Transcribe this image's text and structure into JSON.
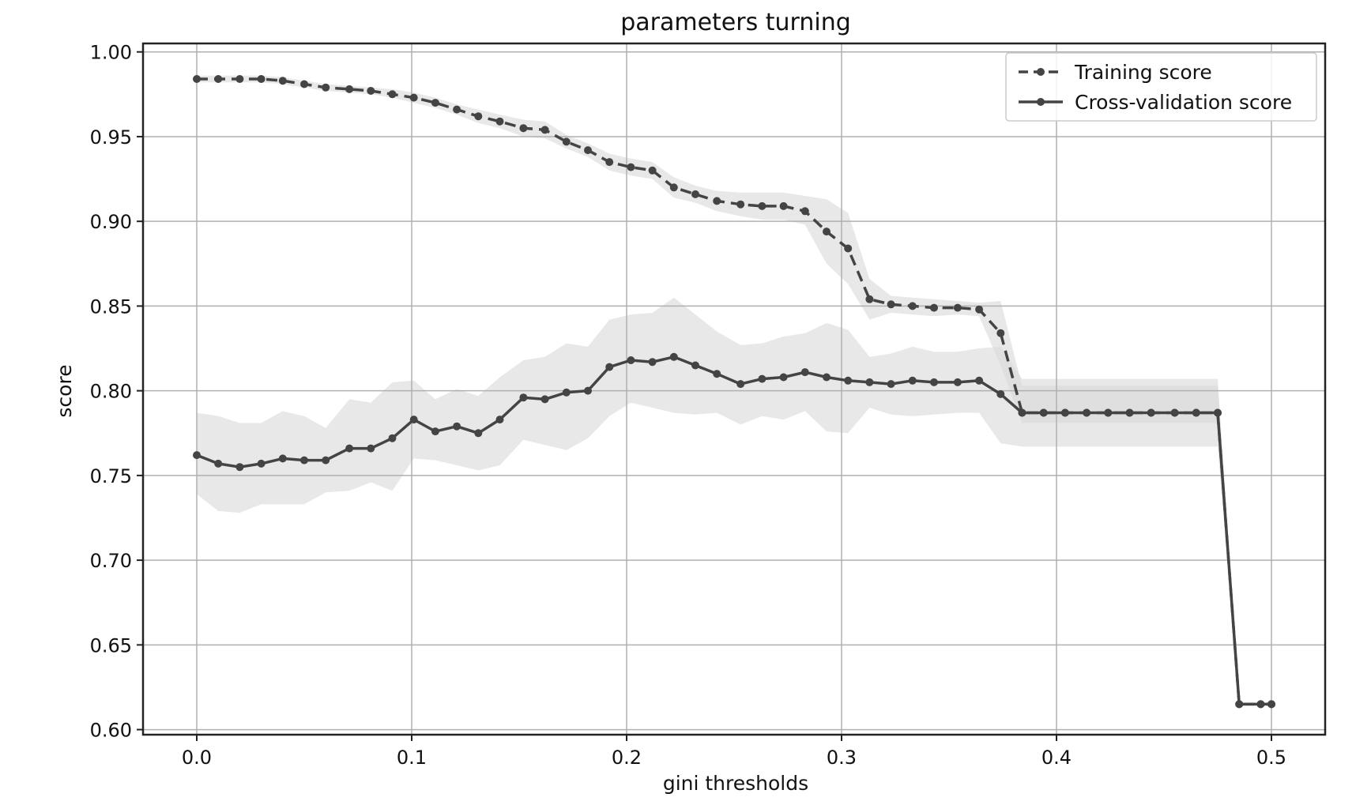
{
  "chart_data": {
    "type": "line",
    "title": "parameters turning",
    "xlabel": "gini thresholds",
    "ylabel": "score",
    "xlim": [
      -0.025,
      0.525
    ],
    "ylim": [
      0.597,
      1.005
    ],
    "xticks": [
      0.0,
      0.1,
      0.2,
      0.3,
      0.4,
      0.5
    ],
    "xtick_labels": [
      "0.0",
      "0.1",
      "0.2",
      "0.3",
      "0.4",
      "0.5"
    ],
    "yticks": [
      0.6,
      0.65,
      0.7,
      0.75,
      0.8,
      0.85,
      0.9,
      0.95,
      1.0
    ],
    "ytick_labels": [
      "0.60",
      "0.65",
      "0.70",
      "0.75",
      "0.80",
      "0.85",
      "0.90",
      "0.95",
      "1.00"
    ],
    "grid": true,
    "legend_position": "upper right",
    "colors": {
      "line": "#444444",
      "band": "#d9d9d9",
      "grid": "#b0b0b0",
      "axes": "#222222"
    },
    "x": [
      0.0,
      0.01,
      0.02,
      0.03,
      0.04,
      0.05,
      0.06,
      0.071,
      0.081,
      0.091,
      0.101,
      0.111,
      0.121,
      0.131,
      0.141,
      0.152,
      0.162,
      0.172,
      0.182,
      0.192,
      0.202,
      0.212,
      0.222,
      0.232,
      0.242,
      0.253,
      0.263,
      0.273,
      0.283,
      0.293,
      0.303,
      0.313,
      0.323,
      0.333,
      0.343,
      0.354,
      0.364,
      0.374,
      0.384,
      0.394,
      0.404,
      0.414,
      0.424,
      0.434,
      0.444,
      0.455,
      0.465,
      0.475,
      0.485,
      0.495,
      0.5
    ],
    "series": [
      {
        "name": "Training score",
        "linestyle": "dashed",
        "marker": "circle",
        "values": [
          0.984,
          0.984,
          0.984,
          0.984,
          0.983,
          0.981,
          0.979,
          0.978,
          0.977,
          0.975,
          0.973,
          0.97,
          0.966,
          0.962,
          0.959,
          0.955,
          0.954,
          0.947,
          0.942,
          0.935,
          0.932,
          0.93,
          0.92,
          0.916,
          0.912,
          0.91,
          0.909,
          0.909,
          0.906,
          0.894,
          0.884,
          0.854,
          0.851,
          0.85,
          0.849,
          0.849,
          0.848,
          0.834,
          0.787,
          0.787,
          0.787,
          0.787,
          0.787,
          0.787,
          0.787,
          0.787,
          0.787,
          0.787,
          0.615,
          0.615,
          0.615
        ],
        "band_upper": [
          0.986,
          0.986,
          0.986,
          0.986,
          0.985,
          0.983,
          0.981,
          0.98,
          0.979,
          0.978,
          0.976,
          0.973,
          0.969,
          0.966,
          0.963,
          0.96,
          0.959,
          0.951,
          0.946,
          0.94,
          0.937,
          0.935,
          0.926,
          0.921,
          0.918,
          0.917,
          0.917,
          0.917,
          0.915,
          0.913,
          0.905,
          0.866,
          0.856,
          0.855,
          0.854,
          0.853,
          0.852,
          0.853,
          0.803,
          0.803,
          0.803,
          0.803,
          0.803,
          0.803,
          0.803,
          0.803,
          0.803,
          0.803,
          0.615,
          0.615,
          0.615
        ],
        "band_lower": [
          0.982,
          0.982,
          0.982,
          0.982,
          0.981,
          0.979,
          0.977,
          0.976,
          0.975,
          0.973,
          0.97,
          0.967,
          0.963,
          0.958,
          0.955,
          0.95,
          0.949,
          0.943,
          0.938,
          0.93,
          0.927,
          0.925,
          0.914,
          0.911,
          0.906,
          0.903,
          0.901,
          0.901,
          0.898,
          0.875,
          0.863,
          0.842,
          0.846,
          0.845,
          0.844,
          0.845,
          0.844,
          0.815,
          0.781,
          0.781,
          0.781,
          0.781,
          0.781,
          0.781,
          0.781,
          0.781,
          0.781,
          0.781,
          0.615,
          0.615,
          0.615
        ]
      },
      {
        "name": "Cross-validation score",
        "linestyle": "solid",
        "marker": "circle",
        "values": [
          0.762,
          0.757,
          0.755,
          0.757,
          0.76,
          0.759,
          0.759,
          0.766,
          0.766,
          0.772,
          0.783,
          0.776,
          0.779,
          0.775,
          0.783,
          0.796,
          0.795,
          0.799,
          0.8,
          0.814,
          0.818,
          0.817,
          0.82,
          0.815,
          0.81,
          0.804,
          0.807,
          0.808,
          0.811,
          0.808,
          0.806,
          0.805,
          0.804,
          0.806,
          0.805,
          0.805,
          0.806,
          0.798,
          0.787,
          0.787,
          0.787,
          0.787,
          0.787,
          0.787,
          0.787,
          0.787,
          0.787,
          0.787,
          0.615,
          0.615,
          0.615
        ],
        "band_upper": [
          0.787,
          0.785,
          0.781,
          0.781,
          0.788,
          0.785,
          0.778,
          0.795,
          0.793,
          0.805,
          0.806,
          0.795,
          0.801,
          0.797,
          0.808,
          0.818,
          0.82,
          0.828,
          0.826,
          0.842,
          0.845,
          0.846,
          0.855,
          0.845,
          0.835,
          0.827,
          0.828,
          0.832,
          0.834,
          0.84,
          0.836,
          0.82,
          0.822,
          0.826,
          0.823,
          0.823,
          0.825,
          0.826,
          0.807,
          0.807,
          0.807,
          0.807,
          0.807,
          0.807,
          0.807,
          0.807,
          0.807,
          0.807,
          0.615,
          0.615,
          0.615
        ],
        "band_lower": [
          0.739,
          0.729,
          0.728,
          0.733,
          0.733,
          0.733,
          0.74,
          0.741,
          0.746,
          0.741,
          0.76,
          0.759,
          0.756,
          0.753,
          0.756,
          0.771,
          0.768,
          0.765,
          0.772,
          0.785,
          0.793,
          0.79,
          0.787,
          0.786,
          0.787,
          0.78,
          0.785,
          0.783,
          0.788,
          0.776,
          0.775,
          0.79,
          0.786,
          0.785,
          0.786,
          0.787,
          0.787,
          0.769,
          0.767,
          0.767,
          0.767,
          0.767,
          0.767,
          0.767,
          0.767,
          0.767,
          0.767,
          0.767,
          0.615,
          0.615,
          0.615
        ]
      }
    ]
  }
}
